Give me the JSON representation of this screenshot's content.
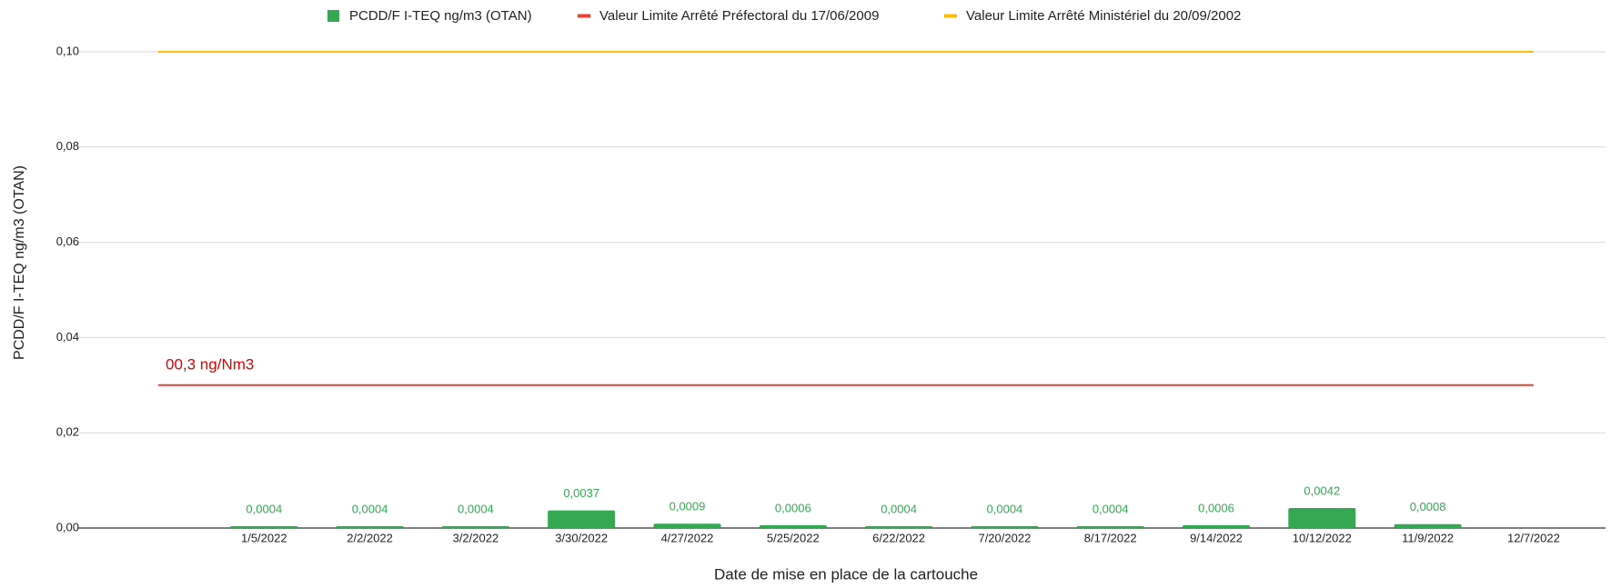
{
  "chart_data": {
    "type": "bar",
    "y_label": "PCDD/F I-TEQ ng/m3 (OTAN)",
    "x_label": "Date de mise en place de la cartouche",
    "annotation": "00,3 ng/Nm3",
    "categories": [
      null,
      "1/5/2022",
      "2/2/2022",
      "3/2/2022",
      "3/30/2022",
      "4/27/2022",
      "5/25/2022",
      "6/22/2022",
      "7/20/2022",
      "8/17/2022",
      "9/14/2022",
      "10/12/2022",
      "11/9/2022",
      "12/7/2022"
    ],
    "series": [
      {
        "name": "PCDD/F I-TEQ ng/m3 (OTAN)",
        "type": "bar",
        "color": "#34a853",
        "values": [
          null,
          0.0004,
          0.0004,
          0.0004,
          0.0037,
          0.0009,
          0.0006,
          0.0004,
          0.0004,
          0.0004,
          0.0006,
          0.0042,
          0.0008,
          null
        ],
        "value_labels": [
          null,
          "0,0004",
          "0,0004",
          "0,0004",
          "0,0037",
          "0,0009",
          "0,0006",
          "0,0004",
          "0,0004",
          "0,0004",
          "0,0006",
          "0,0042",
          "0,0008",
          null
        ]
      },
      {
        "name": "Valeur Limite Arrêté Préfectoral du 17/06/2009",
        "type": "line",
        "color": "#ea4335",
        "values": [
          0.03,
          0.03,
          0.03,
          0.03,
          0.03,
          0.03,
          0.03,
          0.03,
          0.03,
          0.03,
          0.03,
          0.03,
          0.03,
          0.03
        ]
      },
      {
        "name": "Valeur Limite Arrêté Ministériel du 20/09/2002",
        "type": "line",
        "color": "#fbbc04",
        "values": [
          0.1,
          0.1,
          0.1,
          0.1,
          0.1,
          0.1,
          0.1,
          0.1,
          0.1,
          0.1,
          0.1,
          0.1,
          0.1,
          0.1
        ]
      }
    ],
    "ylim": [
      0,
      0.1
    ],
    "yticks": [
      {
        "value": 0,
        "label": "0,00"
      },
      {
        "value": 0.02,
        "label": "0,02"
      },
      {
        "value": 0.04,
        "label": "0,04"
      },
      {
        "value": 0.06,
        "label": "0,06"
      },
      {
        "value": 0.08,
        "label": "0,08"
      },
      {
        "value": 0.1,
        "label": "0,10"
      }
    ],
    "grid": true,
    "legend": "top"
  }
}
